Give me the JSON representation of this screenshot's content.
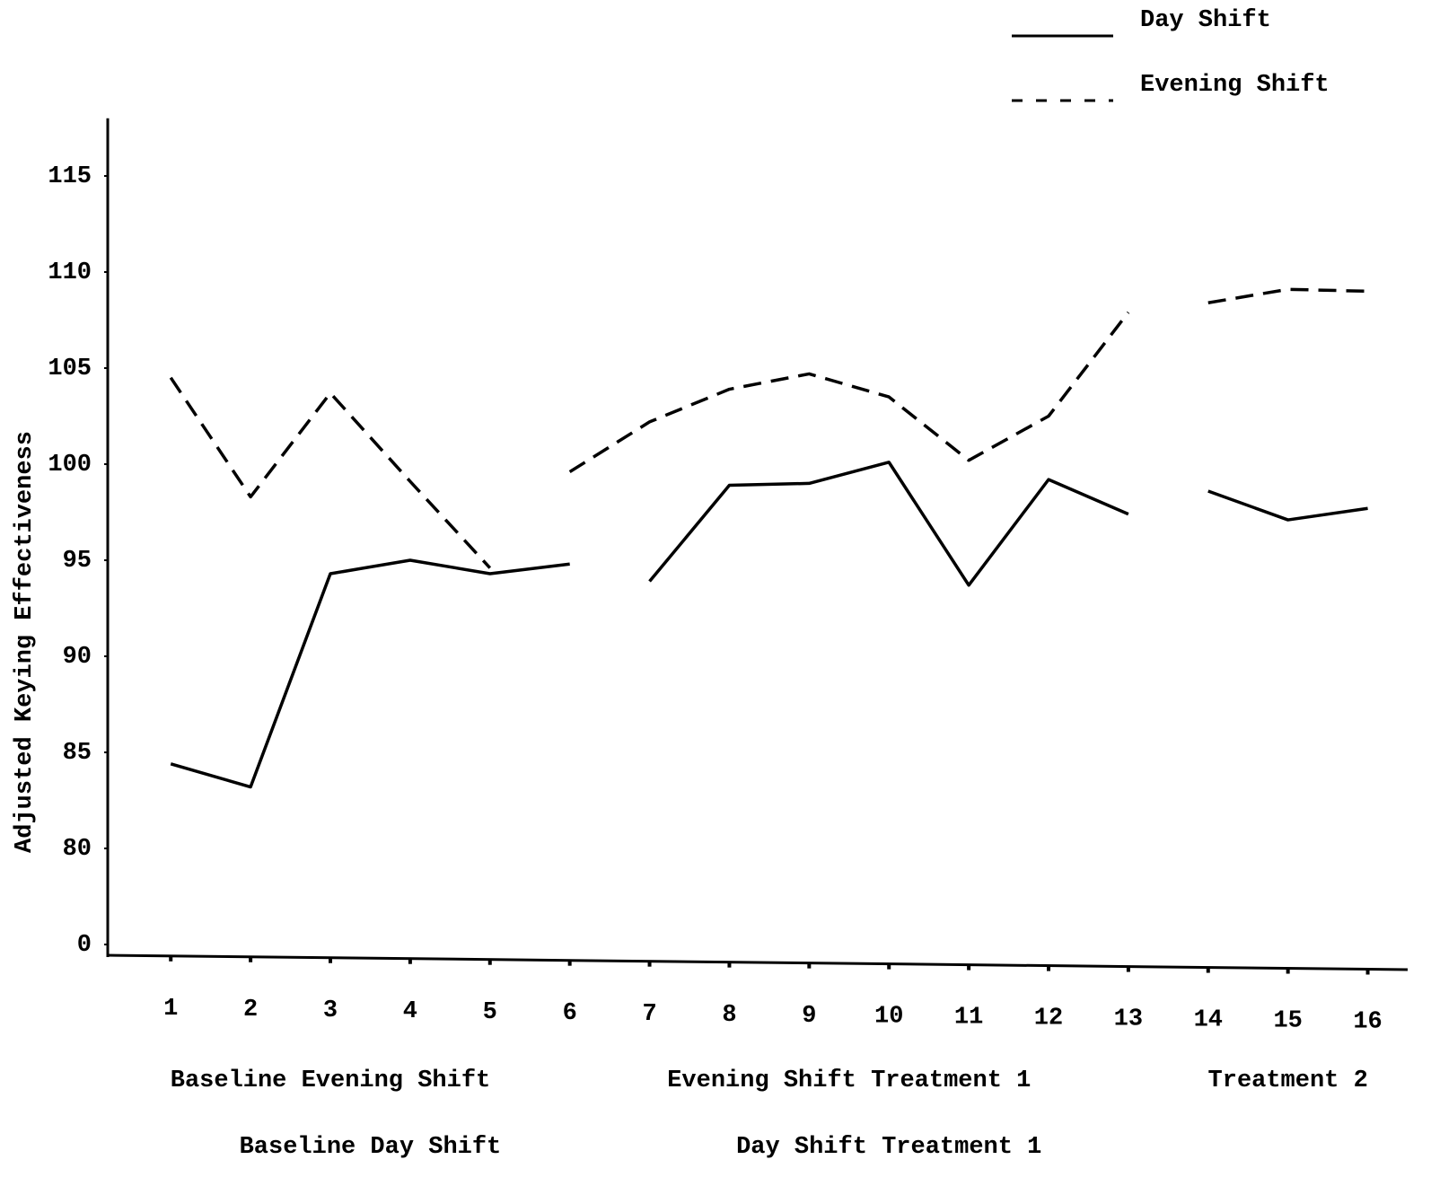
{
  "chart_data": {
    "type": "line",
    "y_label": "Adjusted Keying Effectiveness",
    "x": [
      1,
      2,
      3,
      4,
      5,
      6,
      7,
      8,
      9,
      10,
      11,
      12,
      13,
      14,
      15,
      16
    ],
    "xlim": [
      0.21,
      16.5
    ],
    "ylim": [
      0,
      118
    ],
    "yticks": [
      0,
      80,
      85,
      90,
      95,
      100,
      105,
      110,
      115
    ],
    "series": [
      {
        "name": "Day Shift",
        "color": "#000000",
        "dash": false,
        "values": [
          84.4,
          83.2,
          94.3,
          95.0,
          94.3,
          94.8,
          93.9,
          98.9,
          99.0,
          100.1,
          93.7,
          99.2,
          97.4,
          98.6,
          97.1,
          97.7
        ],
        "phases": [
          {
            "label": "Baseline Day Shift",
            "x": [
              1,
              6
            ]
          },
          {
            "label": "Day Shift Treatment 1",
            "x": [
              7,
              13
            ]
          },
          {
            "x": [
              14,
              16
            ]
          }
        ]
      },
      {
        "name": "Evening Shift",
        "color": "#000000",
        "dash": true,
        "values": [
          104.5,
          98.3,
          103.7,
          99.1,
          94.6,
          99.6,
          102.2,
          103.9,
          104.7,
          103.5,
          100.2,
          102.5,
          107.9,
          108.4,
          109.1,
          109.0
        ],
        "phases": [
          {
            "label": "Baseline Evening Shift",
            "x": [
              1,
              5
            ]
          },
          {
            "label": "Evening Shift Treatment 1",
            "x": [
              6,
              13
            ]
          },
          {
            "label": "Treatment 2",
            "x": [
              14,
              16
            ]
          }
        ]
      }
    ]
  }
}
